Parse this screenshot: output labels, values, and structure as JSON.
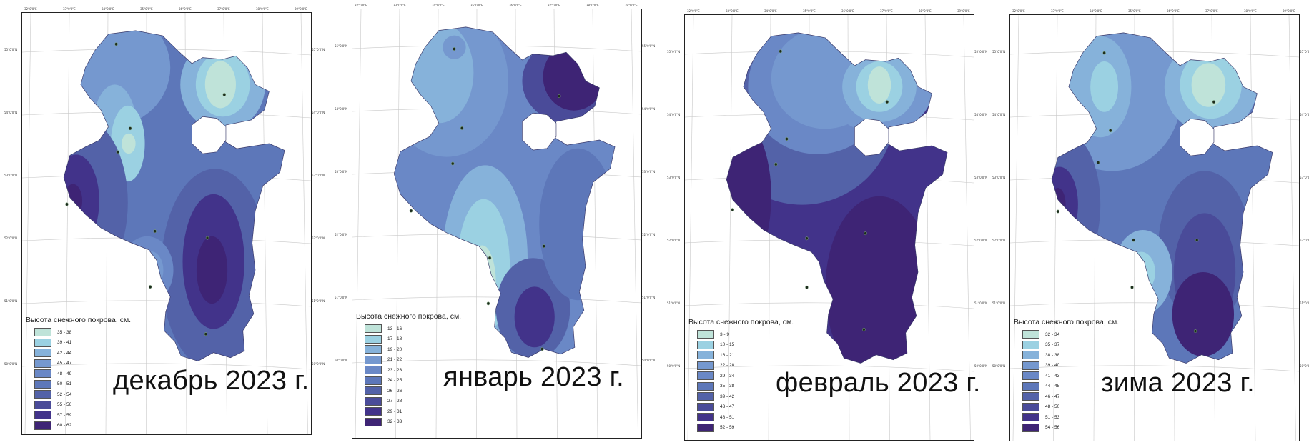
{
  "legend_title": "Высота снежного покрова, см.",
  "ticks": {
    "lon": [
      "32°0'0\"E",
      "33°0'0\"E",
      "34°0'0\"E",
      "35°0'0\"E",
      "36°0'0\"E",
      "37°0'0\"E",
      "38°0'0\"E",
      "39°0'0\"E"
    ],
    "lat": [
      "55°0'0\"N",
      "54°0'0\"N",
      "53°0'0\"N",
      "52°0'0\"N",
      "51°0'0\"N",
      "50°0'0\"N"
    ]
  },
  "maps": [
    {
      "title": "декабрь 2023 г.",
      "classes": [
        "35 - 38",
        "39 - 41",
        "42 - 44",
        "45 - 47",
        "48 - 49",
        "50 - 51",
        "52 - 54",
        "55 - 56",
        "57 - 59",
        "60 - 62"
      ]
    },
    {
      "title": "январь 2023 г.",
      "classes": [
        "13 - 16",
        "17 - 18",
        "19 - 20",
        "21 - 22",
        "23 - 23",
        "24 - 25",
        "26 - 26",
        "27 - 28",
        "29 - 31",
        "32 - 33"
      ]
    },
    {
      "title": "февраль 2023 г.",
      "classes": [
        "3 - 9",
        "10 - 15",
        "16 - 21",
        "22 - 28",
        "29 - 34",
        "35 - 38",
        "39 - 42",
        "43 - 47",
        "48 - 51",
        "52 - 59"
      ]
    },
    {
      "title": "зима 2023 г.",
      "classes": [
        "32 - 34",
        "35 - 37",
        "38 - 38",
        "39 - 40",
        "41 - 43",
        "44 - 45",
        "46 - 47",
        "48 - 50",
        "51 - 53",
        "54 - 56"
      ]
    }
  ],
  "colors": {
    "scale": [
      "#bfe3d9",
      "#9bd1e2",
      "#86b2da",
      "#7598cf",
      "#6a88c6",
      "#5d77b9",
      "#5362a8",
      "#4a4b99",
      "#42338a",
      "#3e2475"
    ]
  }
}
